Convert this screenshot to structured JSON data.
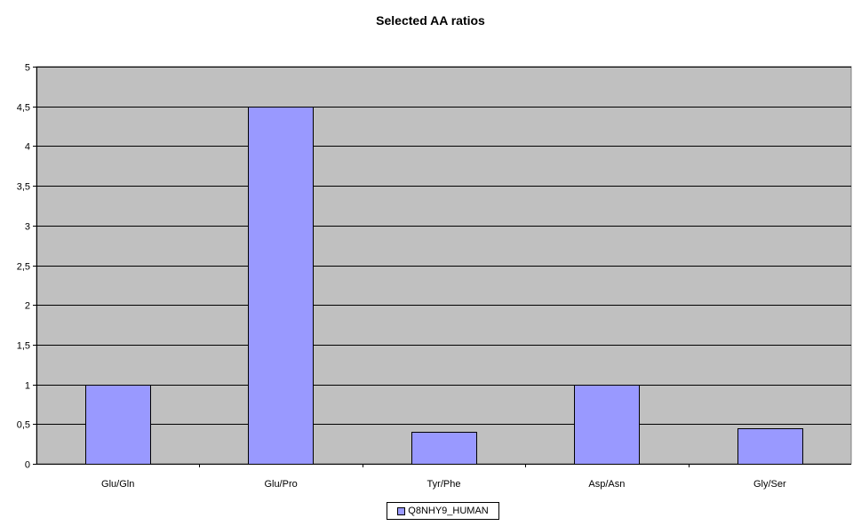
{
  "chart_data": {
    "type": "bar",
    "title": "Selected AA ratios",
    "categories": [
      "Glu/Gln",
      "Glu/Pro",
      "Tyr/Phe",
      "Asp/Asn",
      "Gly/Ser"
    ],
    "series": [
      {
        "name": "Q8NHY9_HUMAN",
        "values": [
          1.0,
          4.5,
          0.4,
          1.0,
          0.45
        ]
      }
    ],
    "ylim": [
      0,
      5
    ],
    "yticks": [
      "0",
      "0,5",
      "1",
      "1,5",
      "2",
      "2,5",
      "3",
      "3,5",
      "4",
      "4,5",
      "5"
    ],
    "grid": true,
    "legend": "bottom",
    "colors": {
      "bar": "#9999ff",
      "plot_background": "#c0c0c0",
      "grid": "#000000"
    }
  }
}
